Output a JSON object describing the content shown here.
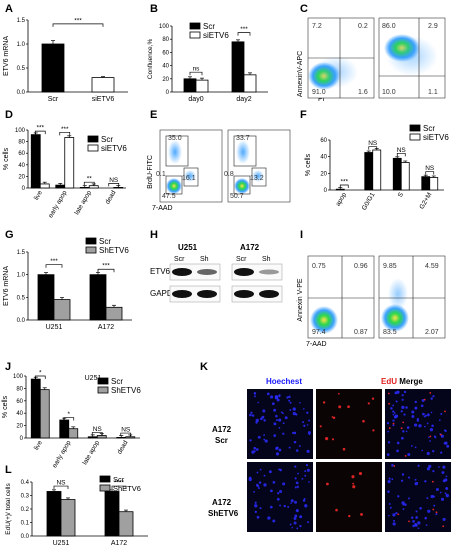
{
  "colors": {
    "scr": "#000000",
    "sietv6": "#ffffff",
    "shetv6": "#a0a0a0",
    "flow_dense": "#2bd84a",
    "flow_mid": "#3aa0ff",
    "hoechst": "#2a2cff",
    "edu": "#ff2a2a"
  },
  "panels": {
    "A": "A",
    "B": "B",
    "C": "C",
    "D": "D",
    "E": "E",
    "F": "F",
    "G": "G",
    "H": "H",
    "I": "I",
    "J": "J",
    "K": "K",
    "L": "L"
  },
  "common": {
    "scr": "Scr",
    "sietv6": "siETV6",
    "shetv6": "ShETV6",
    "sig3": "***",
    "sig1": "*",
    "sig2": "**",
    "sig4": "****",
    "ns": "NS",
    "ns_lower": "ns"
  },
  "A": {
    "ylabel": "ETV6 mRNA",
    "ticks": [
      "0.0",
      "0.5",
      "1.0",
      "1.5"
    ],
    "xcats": [
      "Scr",
      "siETV6"
    ]
  },
  "B": {
    "ylabel": "Confluence,%",
    "ticks": [
      "0",
      "20",
      "40",
      "60",
      "80",
      "100"
    ],
    "xcats": [
      "day0",
      "day2"
    ]
  },
  "C": {
    "ylabel": "AnnexinV-APC",
    "xlabel": "PI",
    "plot1": {
      "ul": "7.2",
      "ur": "0.2",
      "ll": "91.0",
      "lr": "1.6"
    },
    "plot2": {
      "ul": "86.0",
      "ur": "2.9",
      "ll": "10.0",
      "lr": "1.1"
    }
  },
  "D": {
    "ylabel": "% cells",
    "ticks": [
      "0",
      "20",
      "40",
      "60",
      "80",
      "100"
    ],
    "xcats": [
      "live",
      "early apop",
      "late apop",
      "dead"
    ]
  },
  "E": {
    "ylabel": "BrdU-FITC",
    "xlabel": "7-AAD",
    "plot1": {
      "top": "35.0",
      "left": "0.1",
      "mid": "16.1",
      "bottom": "47.5"
    },
    "plot2": {
      "top": "33.7",
      "left": "0.8",
      "mid": "13.2",
      "bottom": "50.7"
    }
  },
  "F": {
    "ylabel": "% cells",
    "ticks": [
      "0",
      "20",
      "40",
      "60"
    ],
    "xcats": [
      "apop",
      "G0/G1",
      "S",
      "G2+M"
    ]
  },
  "G": {
    "ylabel": "ETV6 mRNA",
    "ticks": [
      "0.0",
      "0.5",
      "1.0",
      "1.5"
    ],
    "xcats": [
      "U251",
      "A172"
    ]
  },
  "H": {
    "col1": "U251",
    "col2": "A172",
    "lane_scr": "Scr",
    "lane_sh": "Sh",
    "row1": "ETV6",
    "row2": "GAPDH"
  },
  "I": {
    "ylabel": "Annexin V-PE",
    "xlabel": "7-AAD",
    "plot1": {
      "ul": "0.75",
      "ur": "0.96",
      "ll": "97.4",
      "lr": "0.87"
    },
    "plot2": {
      "ul": "9.85",
      "ur": "4.59",
      "ll": "83.5",
      "lr": "2.07"
    }
  },
  "J": {
    "ylabel": "% cells",
    "title": "U251",
    "ticks": [
      "0",
      "20",
      "40",
      "60",
      "80",
      "100"
    ],
    "xcats": [
      "live",
      "early apop",
      "late apop",
      "dead"
    ]
  },
  "K": {
    "cols": [
      "Hoechest",
      "EdU",
      "Merge"
    ],
    "row1a": "A172",
    "row1b": "Scr",
    "row2a": "A172",
    "row2b": "ShETV6"
  },
  "L": {
    "ylabel": "EdU(+)/ total cells",
    "ticks": [
      "0.0",
      "0.1",
      "0.2",
      "0.3",
      "0.4"
    ],
    "xcats": [
      "U251",
      "A172"
    ]
  },
  "chart_data": [
    {
      "panel": "A",
      "type": "bar",
      "ylabel": "ETV6 mRNA",
      "ylim": [
        0,
        1.5
      ],
      "categories": [
        "Scr",
        "siETV6"
      ],
      "values": [
        1.0,
        0.3
      ],
      "errors": [
        0.07,
        0.02
      ]
    },
    {
      "panel": "B",
      "type": "bar",
      "ylabel": "Confluence,%",
      "ylim": [
        0,
        100
      ],
      "categories": [
        "day0",
        "day2"
      ],
      "series": [
        {
          "name": "Scr",
          "values": [
            20,
            76
          ]
        },
        {
          "name": "siETV6",
          "values": [
            18,
            26
          ]
        }
      ]
    },
    {
      "panel": "D",
      "type": "bar",
      "ylabel": "% cells",
      "ylim": [
        0,
        100
      ],
      "categories": [
        "live",
        "early apop",
        "late apop",
        "dead"
      ],
      "series": [
        {
          "name": "Scr",
          "values": [
            92,
            5,
            1,
            0
          ]
        },
        {
          "name": "siETV6",
          "values": [
            7,
            87,
            4,
            1
          ]
        }
      ]
    },
    {
      "panel": "F",
      "type": "bar",
      "ylabel": "% cells",
      "ylim": [
        0,
        60
      ],
      "categories": [
        "apop",
        "G0/G1",
        "S",
        "G2+M"
      ],
      "series": [
        {
          "name": "Scr",
          "values": [
            1,
            45,
            38,
            16
          ]
        },
        {
          "name": "siETV6",
          "values": [
            0,
            48,
            33,
            15
          ]
        }
      ]
    },
    {
      "panel": "G",
      "type": "bar",
      "ylabel": "ETV6 mRNA",
      "ylim": [
        0,
        1.5
      ],
      "categories": [
        "U251",
        "A172"
      ],
      "series": [
        {
          "name": "Scr",
          "values": [
            1.0,
            1.0
          ]
        },
        {
          "name": "ShETV6",
          "values": [
            0.45,
            0.28
          ]
        }
      ]
    },
    {
      "panel": "J",
      "type": "bar",
      "title": "U251",
      "ylabel": "% cells",
      "ylim": [
        0,
        100
      ],
      "categories": [
        "live",
        "early apop",
        "late apop",
        "dead"
      ],
      "series": [
        {
          "name": "Scr",
          "values": [
            95,
            29,
            2,
            1
          ]
        },
        {
          "name": "ShETV6",
          "values": [
            78,
            15,
            4,
            2
          ]
        }
      ]
    },
    {
      "panel": "L",
      "type": "bar",
      "ylabel": "EdU(+)/ total cells",
      "ylim": [
        0,
        0.4
      ],
      "categories": [
        "U251",
        "A172"
      ],
      "series": [
        {
          "name": "Scr",
          "values": [
            0.33,
            0.33
          ]
        },
        {
          "name": "ShETV6",
          "values": [
            0.27,
            0.18
          ]
        }
      ]
    }
  ]
}
